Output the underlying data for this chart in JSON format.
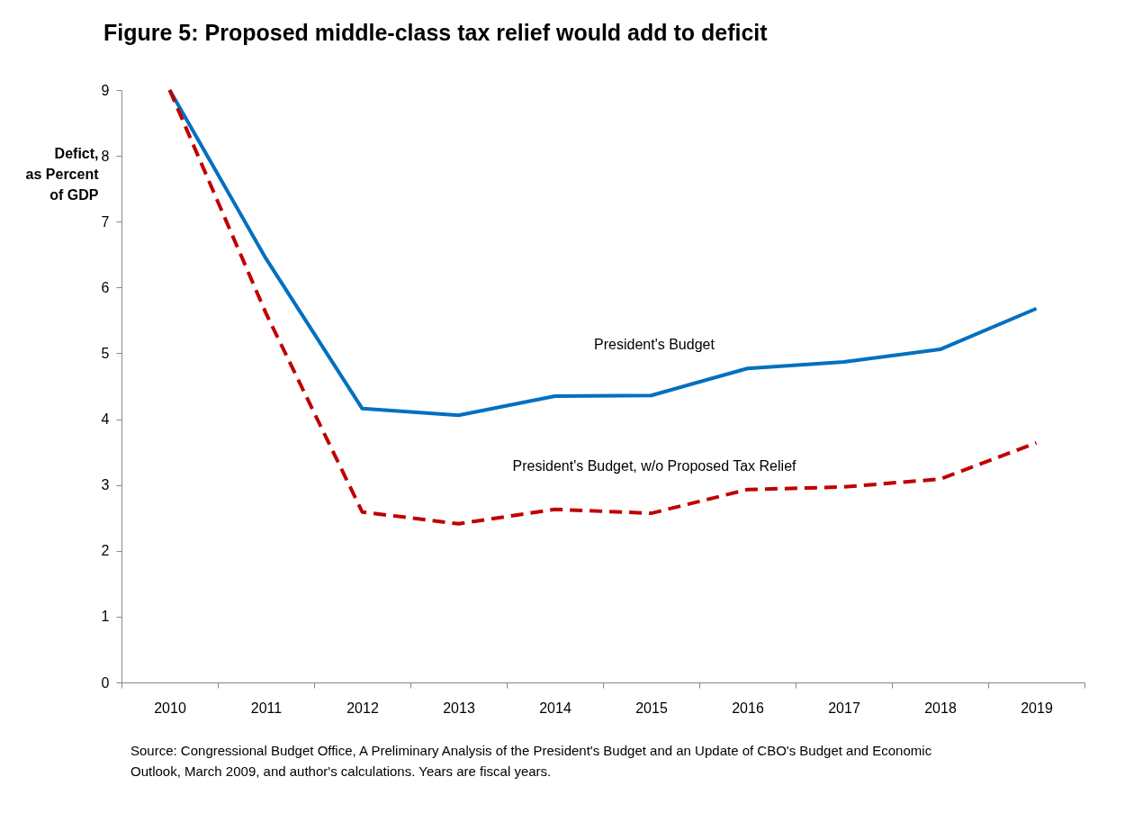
{
  "chart_data": {
    "type": "line",
    "title": "Figure 5: Proposed middle-class tax relief would add to deficit",
    "ylabel": "Defict, as Percent of GDP",
    "categories": [
      "2010",
      "2011",
      "2012",
      "2013",
      "2014",
      "2015",
      "2016",
      "2017",
      "2018",
      "2019"
    ],
    "series": [
      {
        "name": "President's Budget",
        "color": "#0070c0",
        "line_style": "solid",
        "values": [
          9.0,
          6.44,
          4.16,
          4.06,
          4.35,
          4.36,
          4.77,
          4.87,
          5.06,
          5.68
        ]
      },
      {
        "name": "President's Budget, w/o Proposed Tax Relief",
        "color": "#c00000",
        "line_style": "dashed",
        "values": [
          9.0,
          5.61,
          2.59,
          2.41,
          2.63,
          2.57,
          2.93,
          2.97,
          3.09,
          3.64
        ]
      }
    ],
    "ylim": [
      0,
      9
    ],
    "yticks": [
      0,
      1,
      2,
      3,
      4,
      5,
      6,
      7,
      8,
      9
    ],
    "grid": false,
    "legend": false,
    "marker": "none",
    "annotations": [
      "Source: Congressional Budget Office, A Preliminary Analysis of the President's Budget and an Update of CBO's Budget and Economic Outlook, March 2009, and author's calculations. Years are fiscal years."
    ]
  }
}
